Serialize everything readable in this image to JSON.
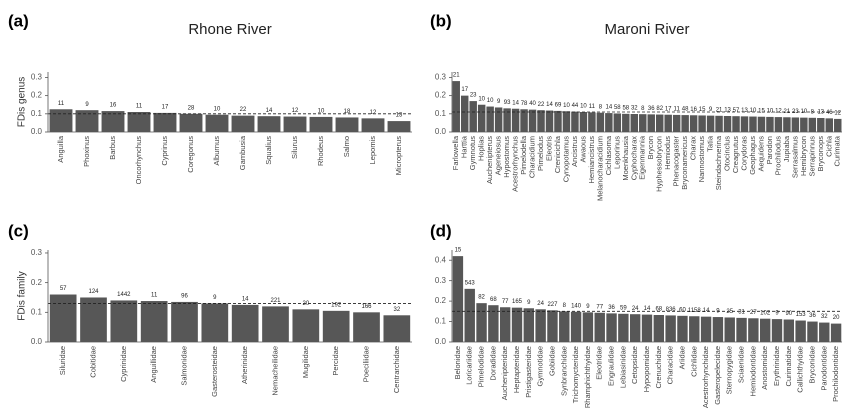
{
  "chart_data": [
    {
      "type": "bar",
      "panel_label": "(a)",
      "title": "Rhone River",
      "y_label": "FDis genus",
      "categories": [
        "Anguilla",
        "Phoxinus",
        "Barbus",
        "Oncorhynchus",
        "Cyprinus",
        "Coregonus",
        "Alburnus",
        "Gambusia",
        "Squalius",
        "Silurus",
        "Rhodeus",
        "Salmo",
        "Lepomis",
        "Micropterus"
      ],
      "values": [
        0.125,
        0.12,
        0.115,
        0.11,
        0.105,
        0.1,
        0.095,
        0.09,
        0.087,
        0.085,
        0.083,
        0.08,
        0.075,
        0.06
      ],
      "bar_labels": [
        11,
        9,
        16,
        11,
        17,
        28,
        10,
        22,
        14,
        12,
        10,
        18,
        12,
        13
      ],
      "reference_line": 0.1,
      "color": "#575757",
      "ylim": [
        0,
        0.33
      ],
      "yticks": [
        {
          "value": 0,
          "label": "0.0"
        },
        0.1,
        0.2,
        0.3
      ]
    },
    {
      "type": "bar",
      "panel_label": "(b)",
      "title": "Maroni River",
      "categories": [
        "Farlowella",
        "Harttia",
        "Gymnotus",
        "Hoplias",
        "Auchenipterus",
        "Ageneiosus",
        "Hypostomus",
        "Acestrorhynchus",
        "Pimelodella",
        "Characidium",
        "Pimelodus",
        "Eleotris",
        "Crenicichla",
        "Cynopotamus",
        "Ancistrus",
        "Awaous",
        "Hemiancistrus",
        "Melanocharacidium",
        "Cichlasoma",
        "Leporinus",
        "Moenkhausia",
        "Cyphocharax",
        "Eigenmannia",
        "Brycon",
        "Hyphessobrycon",
        "Hemiodus",
        "Phenacogaster",
        "Bryconamericus",
        "Charax",
        "Nannostomus",
        "Tatia",
        "Steindachnerina",
        "Otocinclus",
        "Creagrutus",
        "Corydoras",
        "Geophagus",
        "Aequidens",
        "Parodon",
        "Prochilodus",
        "Jupiaba",
        "Serrasalmus",
        "Hemibrycon",
        "Serrapinnus",
        "Bryconops",
        "Cichla",
        "Curimata"
      ],
      "values": [
        0.28,
        0.2,
        0.17,
        0.15,
        0.14,
        0.135,
        0.13,
        0.128,
        0.125,
        0.123,
        0.12,
        0.118,
        0.116,
        0.114,
        0.112,
        0.11,
        0.108,
        0.106,
        0.104,
        0.102,
        0.1,
        0.099,
        0.098,
        0.097,
        0.096,
        0.095,
        0.094,
        0.093,
        0.092,
        0.091,
        0.09,
        0.089,
        0.088,
        0.087,
        0.086,
        0.085,
        0.084,
        0.083,
        0.082,
        0.081,
        0.08,
        0.079,
        0.078,
        0.077,
        0.075,
        0.072
      ],
      "bar_labels": [
        21,
        17,
        23,
        10,
        10,
        9,
        93,
        14,
        78,
        40,
        22,
        14,
        69,
        10,
        44,
        10,
        11,
        8,
        14,
        58,
        58,
        32,
        8,
        36,
        82,
        17,
        11,
        48,
        16,
        15,
        9,
        21,
        13,
        57,
        13,
        10,
        15,
        10,
        12,
        21,
        23,
        10,
        8,
        13,
        46,
        12
      ],
      "reference_line": 0.11,
      "color": "#575757",
      "ylim": [
        0,
        0.33
      ],
      "yticks": [
        {
          "value": 0,
          "label": "0.0"
        },
        0.1,
        0.2,
        0.3
      ]
    },
    {
      "type": "bar",
      "panel_label": "(c)",
      "y_label": "FDis family",
      "categories": [
        "Siluridae",
        "Cobitidae",
        "Cyprinidae",
        "Anguillidae",
        "Salmonidae",
        "Gasterosteidae",
        "Atherinidae",
        "Nemacheilidae",
        "Mugilidae",
        "Percidae",
        "Poeciliidae",
        "Centrarchidae"
      ],
      "values": [
        0.16,
        0.15,
        0.14,
        0.138,
        0.135,
        0.13,
        0.125,
        0.12,
        0.11,
        0.105,
        0.1,
        0.09
      ],
      "bar_labels": [
        57,
        124,
        1442,
        11,
        96,
        9,
        14,
        221,
        20,
        192,
        166,
        32
      ],
      "reference_line": 0.13,
      "color": "#575757",
      "ylim": [
        0,
        0.31
      ],
      "yticks": [
        {
          "value": 0,
          "label": "0.0"
        },
        0.1,
        0.2,
        0.3
      ]
    },
    {
      "type": "bar",
      "panel_label": "(d)",
      "categories": [
        "Belonidae",
        "Loricariidae",
        "Pimelodidae",
        "Doradidae",
        "Auchenipteridae",
        "Heptapteridae",
        "Pristigasteridae",
        "Gymnotidae",
        "Gobiidae",
        "Synbranchidae",
        "Trichomycteridae",
        "Rhamphichthyidae",
        "Eleotridae",
        "Engraulidae",
        "Lebiasinidae",
        "Cetopsidae",
        "Hypopomidae",
        "Crenuchidae",
        "Characidae",
        "Ariidae",
        "Cichlidae",
        "Acestrorhynchidae",
        "Gasteropelecidae",
        "Sternopygidae",
        "Sciaenidae",
        "Hemiodontidae",
        "Anostomidae",
        "Erythrinidae",
        "Curimatidae",
        "Callichthyidae",
        "Bryconidae",
        "Parodontidae",
        "Prochilodontidae"
      ],
      "values": [
        0.42,
        0.26,
        0.19,
        0.18,
        0.17,
        0.168,
        0.165,
        0.16,
        0.155,
        0.15,
        0.148,
        0.145,
        0.143,
        0.14,
        0.138,
        0.136,
        0.134,
        0.132,
        0.13,
        0.128,
        0.126,
        0.124,
        0.122,
        0.12,
        0.118,
        0.116,
        0.114,
        0.112,
        0.11,
        0.105,
        0.1,
        0.095,
        0.09
      ],
      "bar_labels": [
        15,
        543,
        82,
        68,
        77,
        165,
        9,
        24,
        227,
        8,
        140,
        9,
        77,
        36,
        59,
        24,
        14,
        68,
        836,
        60,
        1158,
        14,
        9,
        25,
        31,
        27,
        102,
        9,
        90,
        153,
        36,
        32,
        20
      ],
      "reference_line": 0.15,
      "color": "#575757",
      "ylim": [
        0,
        0.45
      ],
      "yticks": [
        {
          "value": 0,
          "label": "0.0"
        },
        0.1,
        0.2,
        0.3,
        0.4
      ]
    }
  ]
}
